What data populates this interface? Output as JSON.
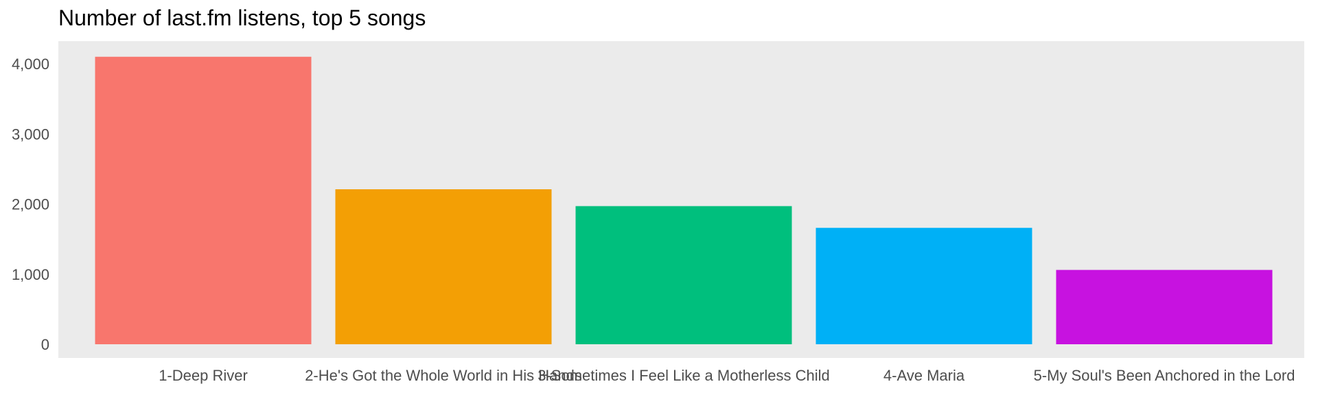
{
  "chart_data": {
    "type": "bar",
    "title": "Number of last.fm listens, top 5 songs",
    "xlabel": "",
    "ylabel": "",
    "categories": [
      "1-Deep River",
      "2-He's Got the Whole World in His Hands",
      "3-Sometimes I Feel Like a Motherless Child",
      "4-Ave Maria",
      "5-My Soul's Been Anchored in the Lord"
    ],
    "values": [
      4100,
      2210,
      1970,
      1660,
      1060
    ],
    "colors": [
      "#F8766D",
      "#F39F05",
      "#00BF7D",
      "#00B0F6",
      "#C712E0"
    ],
    "ylim": [
      -200,
      4200
    ],
    "yticks": [
      0,
      1000,
      2000,
      3000,
      4000
    ],
    "ytick_labels": [
      "0",
      "1,000",
      "2,000",
      "3,000",
      "4,000"
    ],
    "grid": false,
    "legend": "none",
    "panel_background": "#EBEBEB"
  }
}
